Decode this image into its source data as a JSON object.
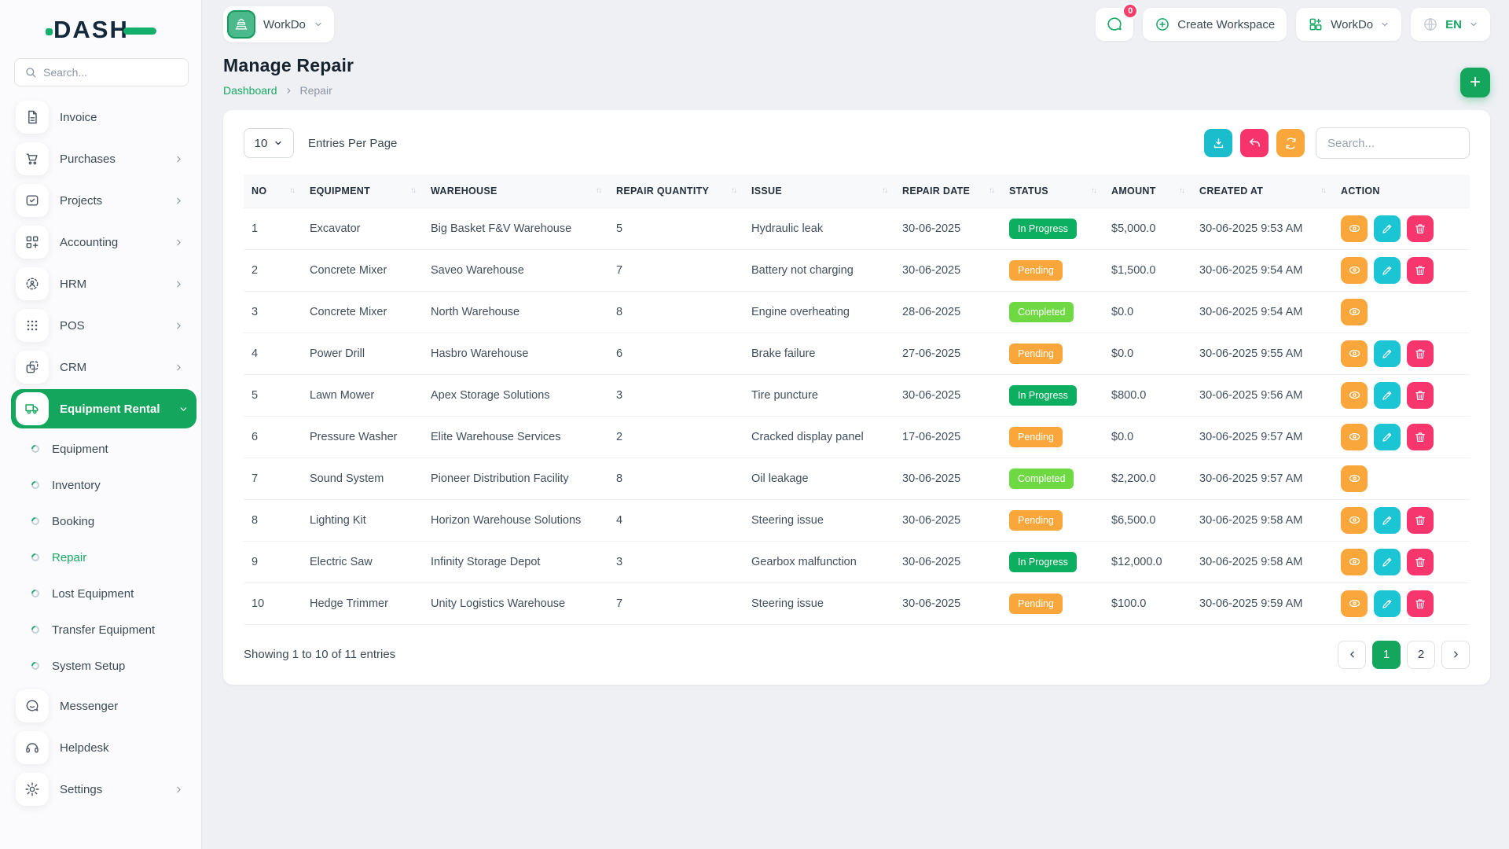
{
  "brand": {
    "logo_text": "DASH"
  },
  "sidebar": {
    "search_placeholder": "Search...",
    "items": [
      {
        "label": "Invoice",
        "icon": "invoice-icon",
        "chevron": false
      },
      {
        "label": "Purchases",
        "icon": "cart-icon",
        "chevron": true
      },
      {
        "label": "Projects",
        "icon": "projects-icon",
        "chevron": true
      },
      {
        "label": "Accounting",
        "icon": "accounting-icon",
        "chevron": true
      },
      {
        "label": "HRM",
        "icon": "hrm-icon",
        "chevron": true
      },
      {
        "label": "POS",
        "icon": "pos-icon",
        "chevron": true
      },
      {
        "label": "CRM",
        "icon": "crm-icon",
        "chevron": true
      },
      {
        "label": "Equipment Rental",
        "icon": "truck-icon",
        "chevron": true,
        "active": true
      }
    ],
    "submenu": [
      {
        "label": "Equipment"
      },
      {
        "label": "Inventory"
      },
      {
        "label": "Booking"
      },
      {
        "label": "Repair",
        "active": true
      },
      {
        "label": "Lost Equipment"
      },
      {
        "label": "Transfer Equipment"
      },
      {
        "label": "System Setup"
      }
    ],
    "bottom_items": [
      {
        "label": "Messenger",
        "icon": "chat-icon",
        "chevron": false
      },
      {
        "label": "Helpdesk",
        "icon": "headset-icon",
        "chevron": false
      },
      {
        "label": "Settings",
        "icon": "gear-icon",
        "chevron": true
      }
    ]
  },
  "header": {
    "workspace_name": "WorkDo",
    "chat_badge": "0",
    "create_workspace_label": "Create Workspace",
    "workdo_menu_label": "WorkDo",
    "language": "EN"
  },
  "page": {
    "title": "Manage Repair",
    "breadcrumb_link": "Dashboard",
    "breadcrumb_current": "Repair",
    "add_button": "+"
  },
  "table": {
    "entries_per_page_value": "10",
    "entries_per_page_label": "Entries Per Page",
    "search_placeholder": "Search...",
    "columns": [
      "NO",
      "EQUIPMENT",
      "WAREHOUSE",
      "REPAIR QUANTITY",
      "ISSUE",
      "REPAIR DATE",
      "STATUS",
      "AMOUNT",
      "CREATED AT",
      "ACTION"
    ],
    "rows": [
      {
        "no": "1",
        "equipment": "Excavator",
        "warehouse": "Big Basket F&V Warehouse",
        "repair_quantity": "5",
        "issue": "Hydraulic leak",
        "repair_date": "30-06-2025",
        "status": "In Progress",
        "amount": "$5,000.0",
        "created_at": "30-06-2025 9:53 AM",
        "actions": [
          "view",
          "edit",
          "delete"
        ]
      },
      {
        "no": "2",
        "equipment": "Concrete Mixer",
        "warehouse": "Saveo Warehouse",
        "repair_quantity": "7",
        "issue": "Battery not charging",
        "repair_date": "30-06-2025",
        "status": "Pending",
        "amount": "$1,500.0",
        "created_at": "30-06-2025 9:54 AM",
        "actions": [
          "view",
          "edit",
          "delete"
        ]
      },
      {
        "no": "3",
        "equipment": "Concrete Mixer",
        "warehouse": "North Warehouse",
        "repair_quantity": "8",
        "issue": "Engine overheating",
        "repair_date": "28-06-2025",
        "status": "Completed",
        "amount": "$0.0",
        "created_at": "30-06-2025 9:54 AM",
        "actions": [
          "view"
        ]
      },
      {
        "no": "4",
        "equipment": "Power Drill",
        "warehouse": "Hasbro Warehouse",
        "repair_quantity": "6",
        "issue": "Brake failure",
        "repair_date": "27-06-2025",
        "status": "Pending",
        "amount": "$0.0",
        "created_at": "30-06-2025 9:55 AM",
        "actions": [
          "view",
          "edit",
          "delete"
        ]
      },
      {
        "no": "5",
        "equipment": "Lawn Mower",
        "warehouse": "Apex Storage Solutions",
        "repair_quantity": "3",
        "issue": "Tire puncture",
        "repair_date": "30-06-2025",
        "status": "In Progress",
        "amount": "$800.0",
        "created_at": "30-06-2025 9:56 AM",
        "actions": [
          "view",
          "edit",
          "delete"
        ]
      },
      {
        "no": "6",
        "equipment": "Pressure Washer",
        "warehouse": "Elite Warehouse Services",
        "repair_quantity": "2",
        "issue": "Cracked display panel",
        "repair_date": "17-06-2025",
        "status": "Pending",
        "amount": "$0.0",
        "created_at": "30-06-2025 9:57 AM",
        "actions": [
          "view",
          "edit",
          "delete"
        ]
      },
      {
        "no": "7",
        "equipment": "Sound System",
        "warehouse": "Pioneer Distribution Facility",
        "repair_quantity": "8",
        "issue": "Oil leakage",
        "repair_date": "30-06-2025",
        "status": "Completed",
        "amount": "$2,200.0",
        "created_at": "30-06-2025 9:57 AM",
        "actions": [
          "view"
        ]
      },
      {
        "no": "8",
        "equipment": "Lighting Kit",
        "warehouse": "Horizon Warehouse Solutions",
        "repair_quantity": "4",
        "issue": "Steering issue",
        "repair_date": "30-06-2025",
        "status": "Pending",
        "amount": "$6,500.0",
        "created_at": "30-06-2025 9:58 AM",
        "actions": [
          "view",
          "edit",
          "delete"
        ]
      },
      {
        "no": "9",
        "equipment": "Electric Saw",
        "warehouse": "Infinity Storage Depot",
        "repair_quantity": "3",
        "issue": "Gearbox malfunction",
        "repair_date": "30-06-2025",
        "status": "In Progress",
        "amount": "$12,000.0",
        "created_at": "30-06-2025 9:58 AM",
        "actions": [
          "view",
          "edit",
          "delete"
        ]
      },
      {
        "no": "10",
        "equipment": "Hedge Trimmer",
        "warehouse": "Unity Logistics Warehouse",
        "repair_quantity": "7",
        "issue": "Steering issue",
        "repair_date": "30-06-2025",
        "status": "Pending",
        "amount": "$100.0",
        "created_at": "30-06-2025 9:59 AM",
        "actions": [
          "view",
          "edit",
          "delete"
        ]
      }
    ],
    "footer": {
      "showing_text": "Showing 1 to 10 of 11 entries",
      "pages": [
        "1",
        "2"
      ],
      "active_page": "1"
    }
  },
  "colors": {
    "primary_green": "#14a65c",
    "status_in_progress": "#0caf60",
    "status_pending": "#f9a63a",
    "status_completed": "#6fd943",
    "button_cyan": "#1bc5d4",
    "button_pink": "#f7366e",
    "button_orange": "#f9a63a",
    "button_teal": "#1bbccb",
    "badge_pink": "#f73e6c"
  }
}
